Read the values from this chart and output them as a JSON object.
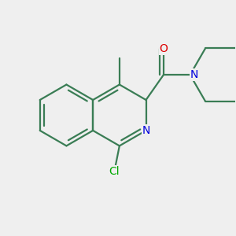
{
  "bg_color": "#efefef",
  "bond_color": "#3a7d55",
  "bond_lw": 1.6,
  "atom_colors": {
    "N": "#0000dd",
    "O": "#dd0000",
    "Cl": "#00aa00"
  },
  "font_size": 10,
  "BL": 0.55,
  "xlim": [
    -2.0,
    2.2
  ],
  "ylim": [
    -1.9,
    1.9
  ]
}
